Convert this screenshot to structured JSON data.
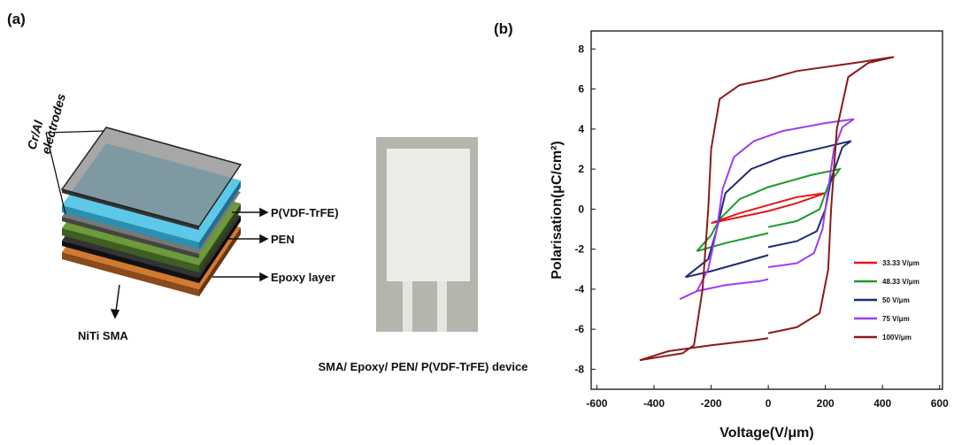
{
  "panel_a": {
    "label": "(a)",
    "electrodes": [
      "Cr/Al",
      "electrodes"
    ],
    "layers": [
      "P(VDF-TrFE)",
      "PEN",
      "Epoxy layer"
    ],
    "substrate": "NiTi SMA",
    "device_caption": "SMA/ Epoxy/ PEN/ P(VDF-TrFE) device"
  },
  "chart_data": {
    "type": "line",
    "panel_label": "(b)",
    "x_label": "Voltage(V/μm)",
    "y_label": "Polarisation(μC/cm²)",
    "xlim": [
      -620,
      610
    ],
    "ylim": [
      -9,
      8.9
    ],
    "xticks": [
      -600,
      -400,
      -200,
      0,
      200,
      400,
      600
    ],
    "yticks": [
      -8,
      -6,
      -4,
      -2,
      0,
      2,
      4,
      6,
      8
    ],
    "grid": false,
    "legend": "right",
    "series": [
      {
        "name": "33.33 V/μm",
        "color": "#e8141a",
        "x": [
          -200,
          -100,
          0,
          100,
          200,
          100,
          0,
          -100,
          -200
        ],
        "values": [
          -0.7,
          -0.4,
          -0.1,
          0.3,
          0.8,
          0.6,
          0.2,
          -0.2,
          -0.7
        ]
      },
      {
        "name": "48.33 V/μm",
        "color": "#1a9a2a",
        "x": [
          -250,
          -150,
          0,
          0,
          0,
          100,
          180,
          210,
          250,
          150,
          0,
          -100,
          -170,
          -200,
          -250
        ],
        "values": [
          -2.1,
          -1.7,
          -1.2,
          null,
          -0.9,
          -0.6,
          0,
          1.2,
          2,
          1.7,
          1.1,
          0.5,
          -0.5,
          -1.3,
          -2.1
        ]
      },
      {
        "name": "50 V/μm",
        "color": "#1c2a7a",
        "x": [
          -290,
          -200,
          -100,
          0,
          0,
          0,
          100,
          170,
          200,
          220,
          260,
          290,
          200,
          50,
          -60,
          -150,
          -180,
          -210,
          -290
        ],
        "values": [
          -3.4,
          -3.1,
          -2.7,
          -2.3,
          null,
          -1.9,
          -1.6,
          -1.1,
          0,
          1.5,
          3.1,
          3.4,
          3.1,
          2.6,
          2,
          0.8,
          -1,
          -2.5,
          -3.4
        ]
      },
      {
        "name": "75 V/μm",
        "color": "#9b3ff0",
        "x": [
          -310,
          -250,
          -150,
          -30,
          0,
          0,
          0,
          100,
          160,
          190,
          210,
          230,
          260,
          300,
          200,
          50,
          -50,
          -120,
          -160,
          -180,
          -210,
          -250,
          -310
        ],
        "values": [
          -4.5,
          -4.1,
          -3.8,
          -3.6,
          -3.5,
          null,
          -2.9,
          -2.7,
          -2.2,
          -1,
          1,
          3,
          4.1,
          4.5,
          4.3,
          3.9,
          3.4,
          2.6,
          1,
          -1,
          -3,
          -4.1,
          -4.5
        ]
      },
      {
        "name": "100V/μm",
        "color": "#8b1a1a",
        "x": [
          -450,
          -350,
          -200,
          -50,
          0,
          0,
          0,
          100,
          180,
          210,
          220,
          240,
          280,
          350,
          440,
          300,
          100,
          0,
          -100,
          -170,
          -200,
          -210,
          -230,
          -260,
          -300,
          -450
        ],
        "values": [
          -7.55,
          -7.1,
          -6.8,
          -6.55,
          -6.45,
          null,
          -6.2,
          -5.9,
          -5.2,
          -3,
          0,
          4,
          6.6,
          7.3,
          7.6,
          7.3,
          6.9,
          6.5,
          6.2,
          5.5,
          3,
          0,
          -4,
          -6.8,
          -7.2,
          -7.55
        ]
      }
    ]
  }
}
